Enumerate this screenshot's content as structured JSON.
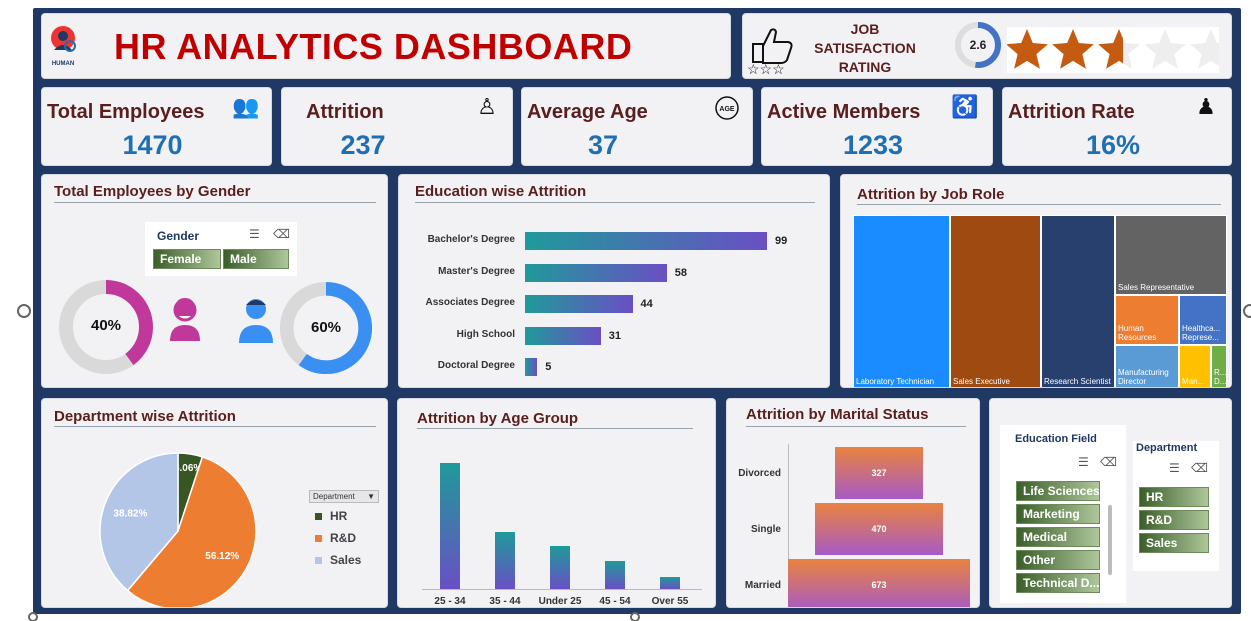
{
  "header": {
    "title": "HR ANALYTICS DASHBOARD",
    "logo_text": "HUMAN"
  },
  "job_satisfaction": {
    "label_line1": "JOB",
    "label_line2": "SATISFACTION",
    "label_line3": "RATING",
    "score": "2.6",
    "score_value": 2.6,
    "stars_total": 5,
    "star_color": "#c55a11"
  },
  "kpis": [
    {
      "title": "Total Employees",
      "value": "1470",
      "icon": "people-group-icon"
    },
    {
      "title": "Attrition",
      "value": "237",
      "icon": "attrition-people-icon"
    },
    {
      "title": "Average Age",
      "value": "37",
      "icon": "age-icon"
    },
    {
      "title": "Active Members",
      "value": "1233",
      "icon": "desk-worker-icon"
    },
    {
      "title": "Attrition Rate",
      "value": "16%",
      "icon": "rate-person-icon"
    }
  ],
  "gender": {
    "title": "Total Employees by Gender",
    "slicer_title": "Gender",
    "options": [
      "Female",
      "Male"
    ],
    "female_pct": "40%",
    "male_pct": "60%",
    "female_fraction": 0.4,
    "male_fraction": 0.6,
    "female_color": "#c0399a",
    "male_color": "#3a8ff2"
  },
  "education": {
    "title": "Education wise Attrition",
    "chart_data": {
      "type": "bar",
      "categories": [
        "Bachelor's Degree",
        "Master's Degree",
        "Associates Degree",
        "High School",
        "Doctoral Degree"
      ],
      "values": [
        99,
        58,
        44,
        31,
        5
      ]
    }
  },
  "job_role": {
    "title": "Attrition by Job Role",
    "cells": [
      {
        "label": "Laboratory Technician",
        "color": "#1a8cff"
      },
      {
        "label": "Sales Executive",
        "color": "#9e4a10"
      },
      {
        "label": "Research Scientist",
        "color": "#27406e"
      },
      {
        "label": "Sales Representative",
        "color": "#636363"
      },
      {
        "label": "Human Resources",
        "color": "#ed7d31"
      },
      {
        "label": "Healthca... Represe...",
        "color": "#4472c4"
      },
      {
        "label": "Manufacturing Director",
        "color": "#5b9bd5"
      },
      {
        "label": "Man...",
        "color": "#ffc000"
      },
      {
        "label": "R... D...",
        "color": "#70ad47"
      }
    ]
  },
  "department": {
    "title": "Department wise Attrition",
    "legend_title": "Department",
    "chart_data": {
      "type": "pie",
      "categories": [
        "HR",
        "R&D",
        "Sales"
      ],
      "values": [
        5.06,
        56.12,
        38.82
      ],
      "labels": [
        "5.06%",
        "56.12%",
        "38.82%"
      ],
      "colors": [
        "#375623",
        "#ed7d31",
        "#b4c6e7"
      ]
    }
  },
  "age_group": {
    "title": "Attrition by Age Group",
    "chart_data": {
      "type": "bar",
      "categories": [
        "25 - 34",
        "35 - 44",
        "Under 25",
        "45 - 54",
        "Over 55"
      ],
      "values": [
        112,
        51,
        38,
        25,
        11
      ]
    }
  },
  "marital": {
    "title": "Attrition by Marital Status",
    "chart_data": {
      "type": "bar",
      "categories": [
        "Divorced",
        "Single",
        "Married"
      ],
      "values": [
        327,
        470,
        673
      ]
    }
  },
  "slicers": {
    "education_field": {
      "title": "Education Field",
      "options": [
        "Life Sciences",
        "Marketing",
        "Medical",
        "Other",
        "Technical D..."
      ]
    },
    "department": {
      "title": "Department",
      "options": [
        "HR",
        "R&D",
        "Sales"
      ]
    }
  }
}
